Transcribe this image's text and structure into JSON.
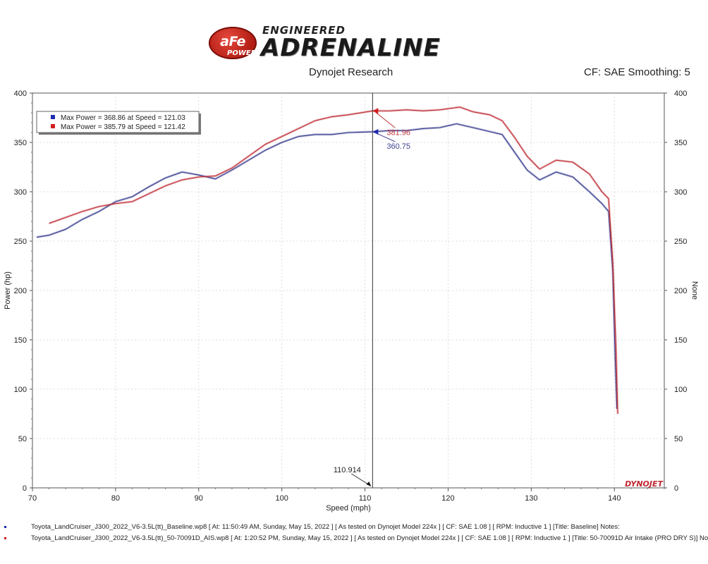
{
  "logo": {
    "badge": "aFe",
    "badge_sub": "POWER",
    "tagline": "ENGINEERED",
    "name": "ADRENALINE"
  },
  "header": {
    "center": "Dynojet Research",
    "right": "CF: SAE Smoothing: 5"
  },
  "colors": {
    "baseline": "#3a3f8f",
    "intake": "#c0323a",
    "cursor": "#333333",
    "grid": "#dddddd",
    "marker_blue": "#1f2bb0",
    "marker_red": "#d11f1f"
  },
  "chart_data": {
    "type": "line",
    "title": "",
    "xlabel": "Speed (mph)",
    "ylabel": "Power (hp)",
    "ylabel_right": "None",
    "xlim": [
      70,
      146
    ],
    "ylim": [
      0,
      400
    ],
    "x_ticks": [
      70,
      80,
      90,
      100,
      110,
      120,
      130,
      140
    ],
    "y_ticks": [
      0,
      50,
      100,
      150,
      200,
      250,
      300,
      350,
      400
    ],
    "grid": true,
    "legend_position": "top-left",
    "legend": [
      {
        "label": "Max Power = 368.86 at Speed = 121.03",
        "color": "#1f2bb0"
      },
      {
        "label": "Max Power = 385.79 at Speed = 121.42",
        "color": "#d11f1f"
      }
    ],
    "cursor": {
      "x": 110.914,
      "label": "110.914"
    },
    "annotations": [
      {
        "series": 1,
        "x": 110.914,
        "y": 381.96,
        "label": "381.96"
      },
      {
        "series": 0,
        "x": 110.914,
        "y": 360.75,
        "label": "360.75"
      }
    ],
    "brand_mark": "DYNOJET",
    "series": [
      {
        "name": "Toyota_LandCruiser_J300_2022_V6-3.5L(tt)_Baseline.wp8",
        "x": [
          70.5,
          72,
          74,
          76,
          78,
          80,
          82,
          84,
          86,
          88,
          90,
          92,
          94,
          96,
          98,
          100,
          102,
          104,
          106,
          108,
          110.9,
          113,
          115,
          117,
          119,
          121,
          123,
          125,
          126.5,
          128,
          129.5,
          131,
          133,
          135,
          137,
          138.5,
          139.3,
          139.8,
          140.1,
          140.3
        ],
        "y": [
          254,
          256,
          262,
          272,
          280,
          290,
          295,
          305,
          314,
          320,
          317,
          313,
          322,
          332,
          342,
          350,
          356,
          358,
          358,
          360,
          360.75,
          362,
          362,
          364,
          365,
          368.86,
          365,
          361,
          358,
          340,
          322,
          312,
          320,
          315,
          300,
          288,
          280,
          220,
          130,
          80
        ]
      },
      {
        "name": "Toyota_LandCruiser_J300_2022_V6-3.5L(tt)_50-70091D_AIS.wp8",
        "x": [
          72,
          74,
          76,
          78,
          80,
          82,
          84,
          86,
          88,
          90,
          92,
          94,
          96,
          98,
          100,
          102,
          104,
          106,
          108,
          110.9,
          113,
          115,
          117,
          119,
          121.4,
          123,
          125,
          126.5,
          128,
          129.5,
          131,
          133,
          135,
          137,
          138.5,
          139.3,
          139.8,
          140.2,
          140.4
        ],
        "y": [
          268,
          274,
          280,
          285,
          288,
          290,
          298,
          306,
          312,
          315,
          316,
          324,
          336,
          348,
          356,
          364,
          372,
          376,
          378,
          381.96,
          382,
          383,
          382,
          383,
          385.79,
          381,
          378,
          372,
          355,
          336,
          323,
          332,
          330,
          318,
          300,
          293,
          230,
          140,
          75
        ]
      }
    ]
  },
  "footer": {
    "line1": "Toyota_LandCruiser_J300_2022_V6-3.5L(tt)_Baseline.wp8 [ At: 11:50:49 AM, Sunday, May 15, 2022 ] [ As tested on Dynojet Model 224x ] [ CF: SAE 1.08 ] [ RPM: Inductive 1 ] [Title: Baseline]  Notes:",
    "line2": "Toyota_LandCruiser_J300_2022_V6-3.5L(tt)_50-70091D_AIS.wp8 [ At: 1:20:52 PM, Sunday, May 15, 2022 ] [ As tested on Dynojet Model 224x ] [ CF: SAE 1.08 ] [ RPM: Inductive 1 ] [Title: 50-70091D Air Intake (PRO DRY S)]  No"
  }
}
